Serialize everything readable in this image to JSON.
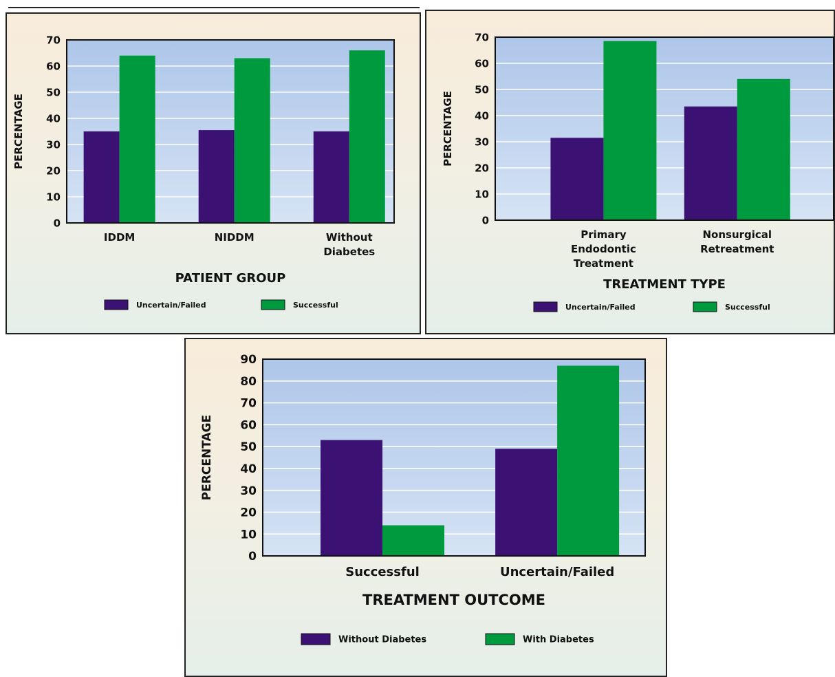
{
  "chart_data": [
    {
      "type": "bar",
      "categories": [
        [
          "IDDM"
        ],
        [
          "NIDDM"
        ],
        [
          "Without",
          "Diabetes"
        ]
      ],
      "series": [
        {
          "name": "Uncertain/Failed",
          "values": [
            35,
            35.5,
            35
          ],
          "color": "#3b1173"
        },
        {
          "name": "Successful",
          "values": [
            64,
            63,
            66
          ],
          "color": "#009a3e"
        }
      ],
      "xlabel": "PATIENT GROUP",
      "ylabel": "PERCENTAGE",
      "ylim": [
        0,
        70
      ],
      "yticks": [
        0,
        10,
        20,
        30,
        40,
        50,
        60,
        70
      ],
      "grid": true,
      "legend": "bottom"
    },
    {
      "type": "bar",
      "categories": [
        [
          "Primary",
          "Endodontic",
          "Treatment"
        ],
        [
          "Nonsurgical",
          "Retreatment"
        ]
      ],
      "series": [
        {
          "name": "Uncertain/Failed",
          "values": [
            31.5,
            43.5
          ],
          "color": "#3b1173"
        },
        {
          "name": "Successful",
          "values": [
            68.5,
            54
          ],
          "color": "#009a3e"
        }
      ],
      "xlabel": "TREATMENT TYPE",
      "ylabel": "PERCENTAGE",
      "ylim": [
        0,
        70
      ],
      "yticks": [
        0,
        10,
        20,
        30,
        40,
        50,
        60,
        70
      ],
      "grid": true,
      "legend": "bottom"
    },
    {
      "type": "bar",
      "categories": [
        [
          "Successful"
        ],
        [
          "Uncertain/Failed"
        ]
      ],
      "series": [
        {
          "name": "Without Diabetes",
          "values": [
            53,
            49
          ],
          "color": "#3b1173"
        },
        {
          "name": "With Diabetes",
          "values": [
            14,
            87
          ],
          "color": "#009a3e"
        }
      ],
      "xlabel": "TREATMENT OUTCOME",
      "ylabel": "PERCENTAGE",
      "ylim": [
        0,
        90
      ],
      "yticks": [
        0,
        10,
        20,
        30,
        40,
        50,
        60,
        70,
        80,
        90
      ],
      "grid": true,
      "legend": "bottom"
    }
  ]
}
